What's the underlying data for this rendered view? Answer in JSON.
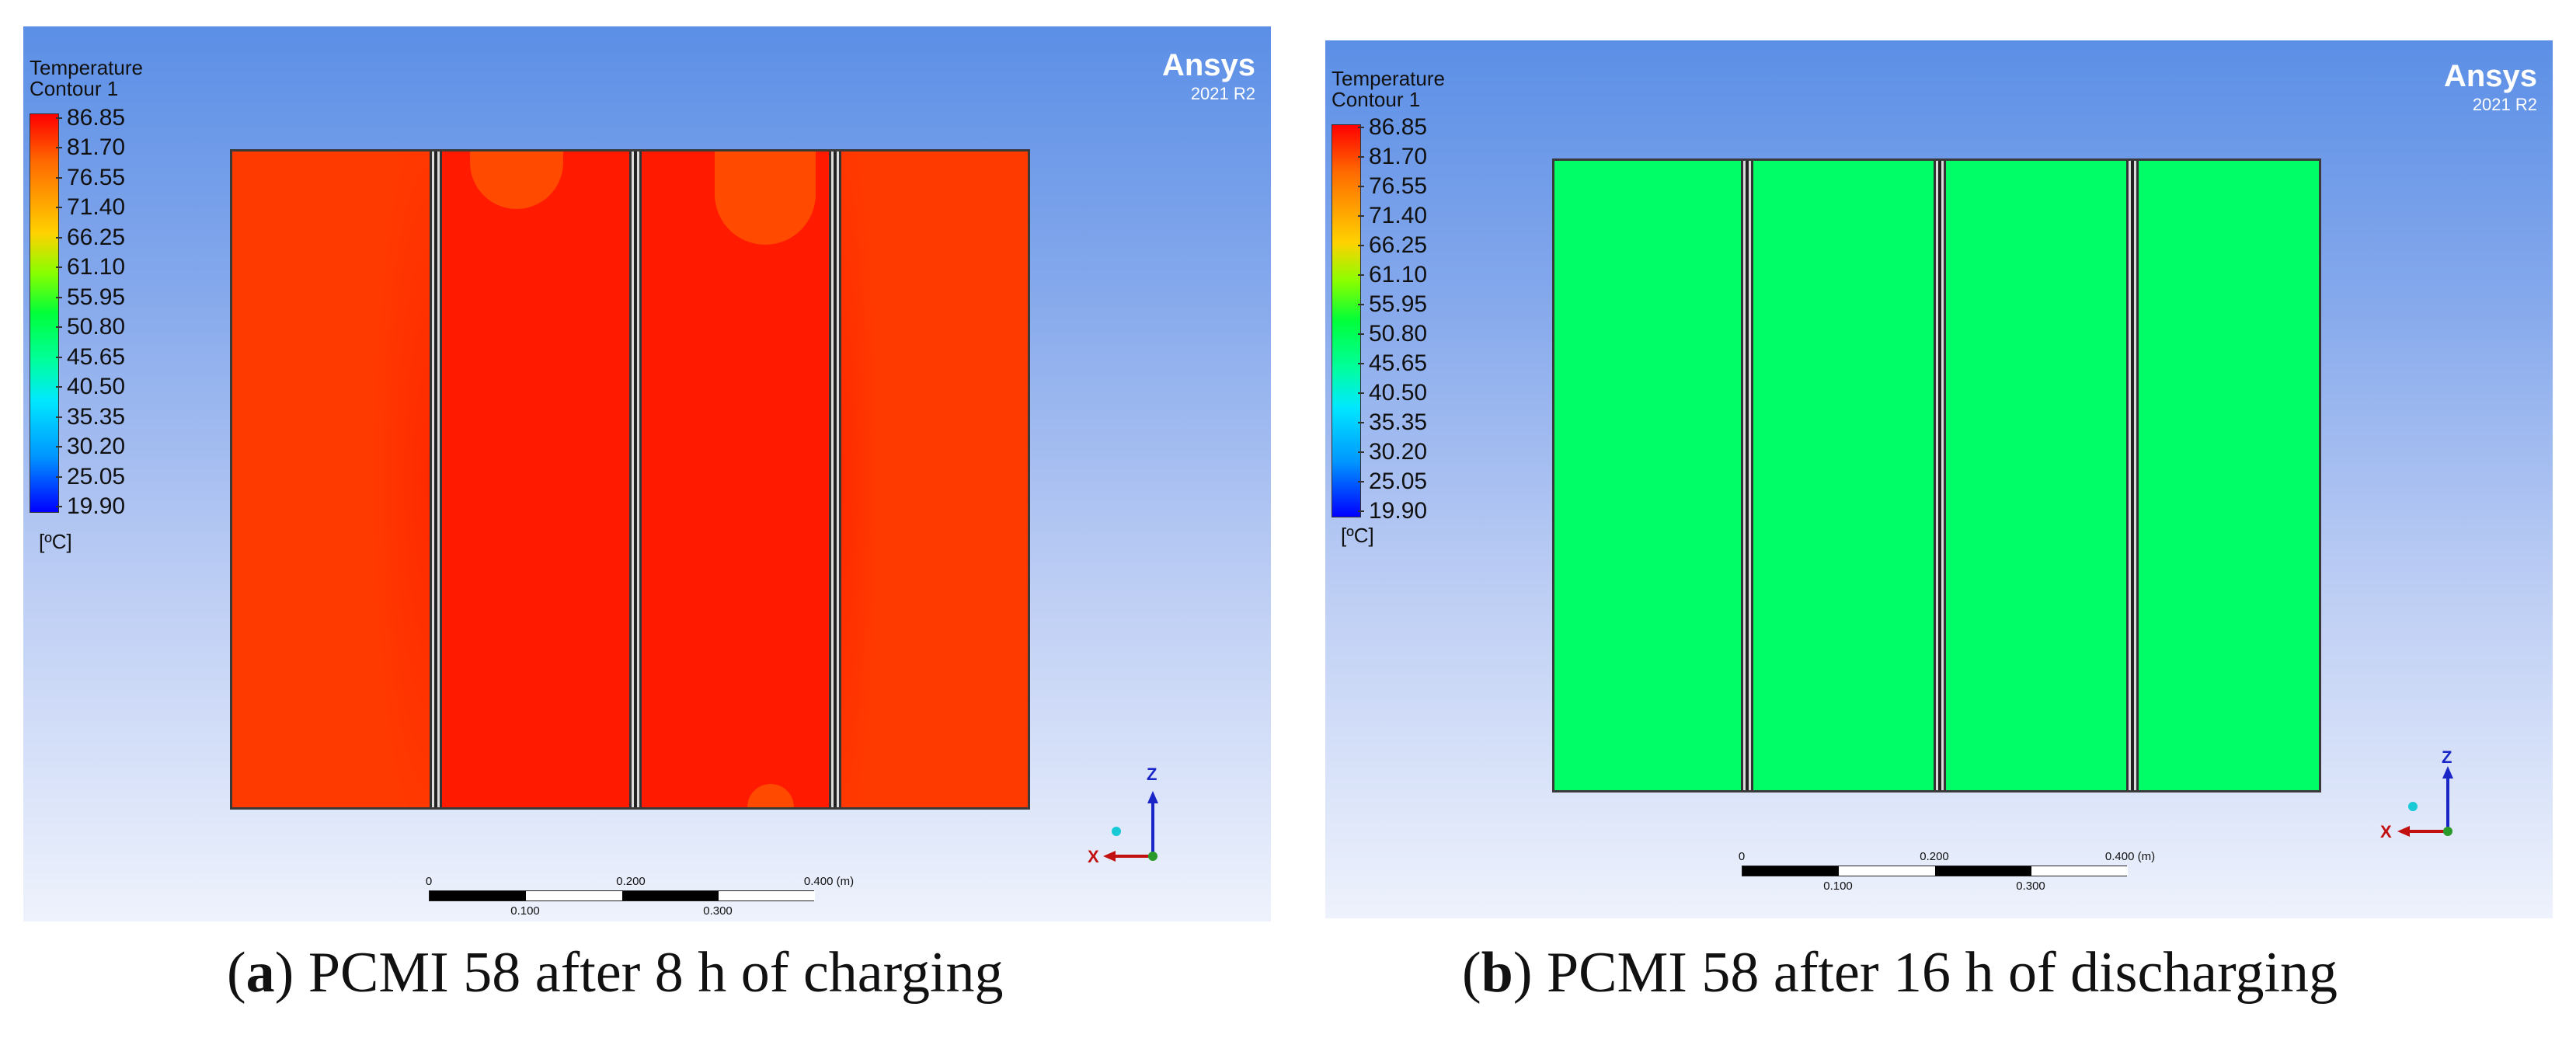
{
  "panels": [
    {
      "legend": {
        "title_line1": "Temperature",
        "title_line2": "Contour 1",
        "ticks": [
          "86.85",
          "81.70",
          "76.55",
          "71.40",
          "66.25",
          "61.10",
          "55.95",
          "50.80",
          "45.65",
          "40.50",
          "35.35",
          "30.20",
          "25.05",
          "19.90"
        ],
        "unit": "[ºC]"
      },
      "brand": "Ansys",
      "version": "2021 R2",
      "field_colors": {
        "outer": "#ff3a00",
        "inner": "#ff1a00",
        "lighter_spot": "#ff4a00"
      },
      "scale": {
        "labels_top": [
          "0",
          "0.200",
          "0.400 (m)"
        ],
        "labels_bottom": [
          "0.100",
          "0.300"
        ]
      },
      "axes": {
        "vertical": "Z",
        "horizontal": "X"
      },
      "caption": {
        "letter": "a",
        "text": "PCMI 58 after 8 h of charging"
      }
    },
    {
      "legend": {
        "title_line1": "Temperature",
        "title_line2": "Contour 1",
        "ticks": [
          "86.85",
          "81.70",
          "76.55",
          "71.40",
          "66.25",
          "61.10",
          "55.95",
          "50.80",
          "45.65",
          "40.50",
          "35.35",
          "30.20",
          "25.05",
          "19.90"
        ],
        "unit": "[ºC]"
      },
      "brand": "Ansys",
      "version": "2021 R2",
      "field_colors": {
        "outer": "#00ff66",
        "inner": "#00ff66",
        "lighter_spot": "#00ff66"
      },
      "scale": {
        "labels_top": [
          "0",
          "0.200",
          "0.400 (m)"
        ],
        "labels_bottom": [
          "0.100",
          "0.300"
        ]
      },
      "axes": {
        "vertical": "Z",
        "horizontal": "X"
      },
      "caption": {
        "letter": "b",
        "text": "PCMI 58 after 16 h of discharging"
      }
    }
  ]
}
